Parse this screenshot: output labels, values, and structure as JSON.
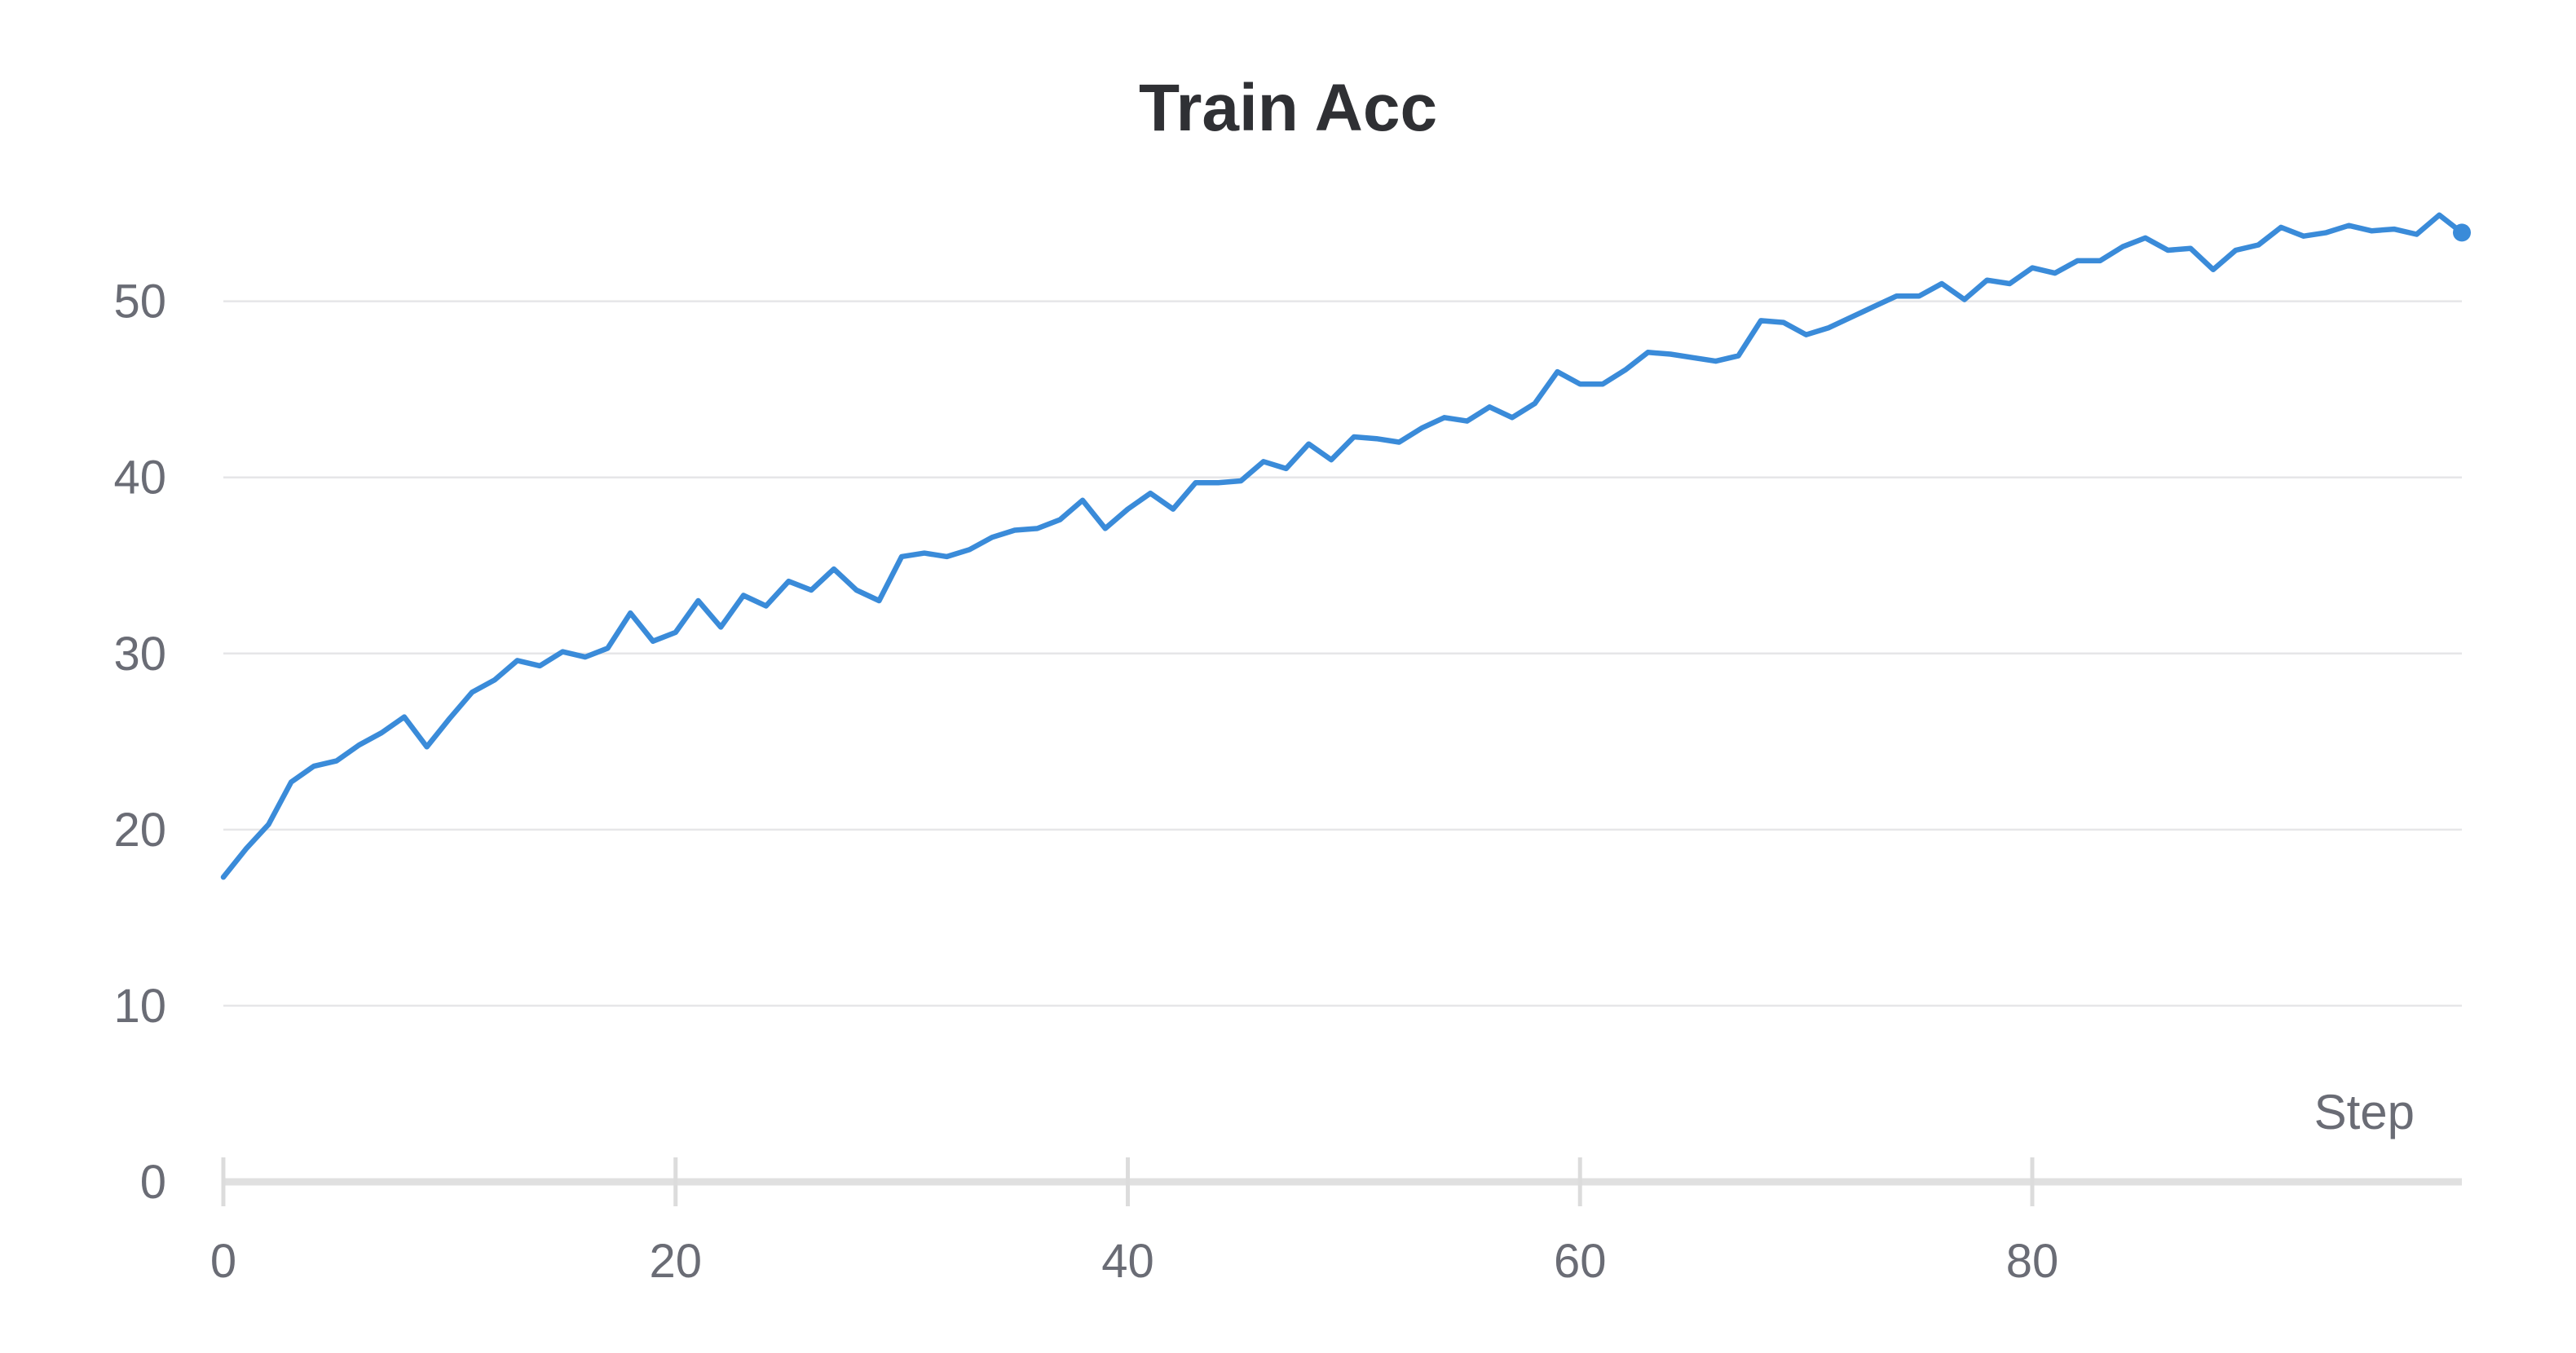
{
  "chart_data": {
    "type": "line",
    "title": "Train Acc",
    "xlabel": "Step",
    "ylabel": "",
    "xlim": [
      0,
      99
    ],
    "ylim": [
      0,
      56
    ],
    "x_ticks": [
      0,
      20,
      40,
      60,
      80
    ],
    "y_ticks": [
      0,
      10,
      20,
      30,
      40,
      50
    ],
    "grid": true,
    "legend": "none",
    "line_color": "#3a8bd9",
    "end_marker": true,
    "series": [
      {
        "x": [
          0,
          1,
          2,
          3,
          4,
          5,
          6,
          7,
          8,
          9,
          10,
          11,
          12,
          13,
          14,
          15,
          16,
          17,
          18,
          19,
          20,
          21,
          22,
          23,
          24,
          25,
          26,
          27,
          28,
          29,
          30,
          31,
          32,
          33,
          34,
          35,
          36,
          37,
          38,
          39,
          40,
          41,
          42,
          43,
          44,
          45,
          46,
          47,
          48,
          49,
          50,
          51,
          52,
          53,
          54,
          55,
          56,
          57,
          58,
          59,
          60,
          61,
          62,
          63,
          64,
          65,
          66,
          67,
          68,
          69,
          70,
          71,
          72,
          73,
          74,
          75,
          76,
          77,
          78,
          79,
          80,
          81,
          82,
          83,
          84,
          85,
          86,
          87,
          88,
          89,
          90,
          91,
          92,
          93,
          94,
          95,
          96,
          97,
          98,
          99
        ],
        "values": [
          17.3,
          18.9,
          20.3,
          22.7,
          23.6,
          23.9,
          24.8,
          25.5,
          26.4,
          24.7,
          26.3,
          27.8,
          28.5,
          29.6,
          29.3,
          30.1,
          29.8,
          30.3,
          32.3,
          30.7,
          31.2,
          33.0,
          31.5,
          33.3,
          32.7,
          34.1,
          33.6,
          34.8,
          33.6,
          33.0,
          35.5,
          35.7,
          35.5,
          35.9,
          36.6,
          37.0,
          37.1,
          37.6,
          38.7,
          37.1,
          38.2,
          39.1,
          38.2,
          39.7,
          39.7,
          39.8,
          40.9,
          40.5,
          41.9,
          41.0,
          42.3,
          42.2,
          42.0,
          42.8,
          43.4,
          43.2,
          44.0,
          43.4,
          44.2,
          46.0,
          45.3,
          45.3,
          46.1,
          47.1,
          47.0,
          46.8,
          46.6,
          46.9,
          48.9,
          48.8,
          48.1,
          48.5,
          49.1,
          49.7,
          50.3,
          50.3,
          51.0,
          50.1,
          51.2,
          51.0,
          51.9,
          51.6,
          52.3,
          52.3,
          53.1,
          53.6,
          52.9,
          53.0,
          51.8,
          52.9,
          53.2,
          54.2,
          53.7,
          53.9,
          54.3,
          54.0,
          54.1,
          53.8,
          54.9,
          53.9
        ]
      }
    ]
  }
}
